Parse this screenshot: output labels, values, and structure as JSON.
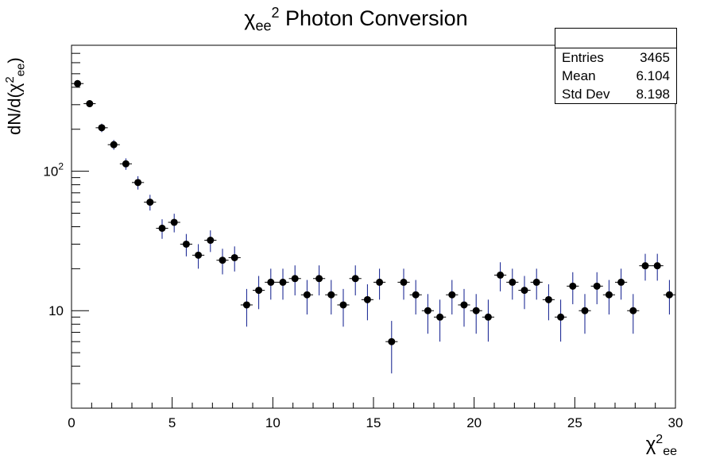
{
  "title": {
    "base": "χ",
    "sub": "ee",
    "sup": "2",
    "text": " Photon Conversion"
  },
  "stats": {
    "entries_label": "Entries",
    "entries_value": "3465",
    "mean_label": "Mean",
    "mean_value": "6.104",
    "std_label": "Std Dev",
    "std_value": "8.198"
  },
  "ylabel": {
    "pre": "dN/d(",
    "base": "χ",
    "sup": "2",
    "sub": "ee",
    "post": ")"
  },
  "xlabel": {
    "base": "χ",
    "sup": "2",
    "sub": "ee"
  },
  "colors": {
    "marker": "#000000",
    "error_bar": "#0b1a8c",
    "axis": "#000000"
  },
  "chart_data": {
    "type": "scatter",
    "scale": {
      "y": "log"
    },
    "xlim": [
      0,
      30
    ],
    "ylim": [
      2,
      800
    ],
    "x_ticks": [
      "0",
      "5",
      "10",
      "15",
      "20",
      "25",
      "30"
    ],
    "y_ticks": [
      {
        "value": 10,
        "base": "10",
        "sup": ""
      },
      {
        "value": 100,
        "base": "10",
        "sup": "2"
      }
    ],
    "series": [
      {
        "x": [
          0.3,
          0.9,
          1.5,
          2.1,
          2.7,
          3.3,
          3.9,
          4.5,
          5.1,
          5.7,
          6.3,
          6.9,
          7.5,
          8.1,
          8.7,
          9.3,
          9.9,
          10.5,
          11.1,
          11.7,
          12.3,
          12.9,
          13.5,
          14.1,
          14.7,
          15.3,
          15.9,
          16.5,
          17.1,
          17.7,
          18.3,
          18.9,
          19.5,
          20.1,
          20.7,
          21.3,
          21.9,
          22.5,
          23.1,
          23.7,
          24.3,
          24.9,
          25.5,
          26.1,
          26.7,
          27.3,
          27.9,
          28.5,
          29.1,
          29.7
        ],
        "y": [
          425,
          305,
          205,
          155,
          113,
          83,
          60,
          39,
          43,
          30,
          25,
          32,
          23,
          24,
          11,
          14,
          16,
          16,
          17,
          13,
          17,
          13,
          11,
          17,
          12,
          16,
          6,
          16,
          13,
          10,
          9,
          13,
          11,
          10,
          9,
          18,
          16,
          14,
          16,
          12,
          9,
          15,
          10,
          15,
          13,
          16,
          10,
          21,
          21,
          13
        ]
      }
    ]
  }
}
